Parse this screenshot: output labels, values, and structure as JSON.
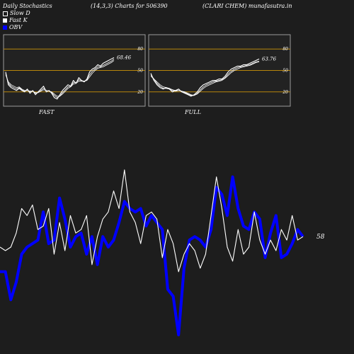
{
  "header": {
    "title": "Daily Stochastics",
    "params": "(14,3,3) Charts for 506390",
    "company": "(CLARI CHEM) munafasutra.in"
  },
  "legend": {
    "items": [
      {
        "label": "Slow  D",
        "color": "#ffffff",
        "icon": "white-square-icon"
      },
      {
        "label": "Fast K",
        "color": "#ffffff",
        "icon": "white-square-icon"
      },
      {
        "label": "OBV",
        "color": "#0000ff",
        "icon": "blue-square-icon"
      }
    ]
  },
  "colors": {
    "background": "#1d1d1d",
    "panel": "#222222",
    "band": "#b8860b",
    "obv": "#0000ff",
    "price": "#ffffff"
  },
  "chart_data": [
    {
      "type": "line",
      "name": "fast-stochastics",
      "label": "FAST",
      "ylim": [
        0,
        100
      ],
      "yticks": [
        20,
        50,
        80
      ],
      "bands": [
        20,
        50,
        80
      ],
      "last_value_label": "68.46",
      "series": [
        {
          "values": [
            48,
            30,
            26,
            24,
            22,
            25,
            22,
            20,
            24,
            18,
            22,
            16,
            20,
            24,
            28,
            20,
            22,
            18,
            12,
            10,
            16,
            22,
            26,
            30,
            28,
            36,
            32,
            40,
            36,
            34,
            38,
            48,
            52,
            54,
            58,
            56,
            60,
            62,
            64,
            66,
            68
          ]
        },
        {
          "values": [
            46,
            32,
            28,
            26,
            24,
            26,
            23,
            21,
            22,
            20,
            21,
            18,
            19,
            22,
            25,
            22,
            21,
            19,
            15,
            12,
            14,
            19,
            23,
            27,
            28,
            33,
            33,
            37,
            36,
            35,
            37,
            44,
            49,
            52,
            55,
            55,
            57,
            59,
            61,
            63,
            66
          ]
        },
        {
          "values": [
            44,
            34,
            30,
            28,
            26,
            27,
            24,
            22,
            22,
            21,
            21,
            19,
            19,
            21,
            23,
            22,
            21,
            20,
            17,
            14,
            14,
            17,
            21,
            25,
            27,
            31,
            32,
            35,
            35,
            35,
            36,
            41,
            46,
            50,
            53,
            54,
            55,
            57,
            59,
            61,
            64
          ]
        }
      ]
    },
    {
      "type": "line",
      "name": "full-stochastics",
      "label": "FULL",
      "ylim": [
        0,
        100
      ],
      "yticks": [
        20,
        50,
        80
      ],
      "bands": [
        20,
        50,
        80
      ],
      "last_value_label": "63.76",
      "series": [
        {
          "values": [
            46,
            36,
            30,
            26,
            24,
            26,
            24,
            20,
            22,
            24,
            20,
            18,
            16,
            14,
            16,
            20,
            26,
            30,
            32,
            34,
            36,
            36,
            38,
            38,
            42,
            48,
            52,
            54,
            56,
            56,
            58,
            58,
            60,
            62,
            64,
            66
          ]
        },
        {
          "values": [
            44,
            38,
            32,
            28,
            25,
            25,
            24,
            22,
            21,
            22,
            21,
            19,
            17,
            15,
            15,
            18,
            23,
            27,
            30,
            32,
            34,
            35,
            36,
            37,
            40,
            45,
            49,
            52,
            54,
            55,
            56,
            57,
            58,
            60,
            62,
            63
          ]
        },
        {
          "values": [
            42,
            38,
            34,
            30,
            27,
            26,
            25,
            23,
            22,
            22,
            21,
            20,
            18,
            16,
            15,
            17,
            21,
            25,
            28,
            30,
            32,
            34,
            35,
            36,
            39,
            43,
            47,
            50,
            52,
            54,
            55,
            56,
            57,
            59,
            61,
            62
          ]
        }
      ]
    },
    {
      "type": "line",
      "name": "price-vs-obv",
      "last_value_label": "58",
      "series": [
        {
          "name": "OBV",
          "color": "#0000ff",
          "values": [
            38,
            38,
            22,
            32,
            48,
            52,
            54,
            56,
            72,
            54,
            56,
            80,
            68,
            52,
            58,
            60,
            48,
            58,
            42,
            58,
            52,
            56,
            66,
            78,
            74,
            72,
            74,
            64,
            70,
            66,
            62,
            28,
            24,
            2,
            40,
            56,
            58,
            56,
            52,
            62,
            86,
            82,
            70,
            92,
            74,
            64,
            62,
            72,
            68,
            46,
            60,
            70,
            46,
            48,
            54,
            62,
            58
          ]
        },
        {
          "name": "Price",
          "color": "#ffffff",
          "values": [
            52,
            50,
            52,
            60,
            74,
            70,
            76,
            62,
            64,
            74,
            48,
            66,
            50,
            70,
            60,
            62,
            70,
            42,
            58,
            68,
            72,
            84,
            74,
            96,
            72,
            66,
            54,
            70,
            72,
            68,
            46,
            62,
            54,
            38,
            48,
            54,
            50,
            40,
            48,
            70,
            92,
            74,
            52,
            44,
            62,
            48,
            52,
            72,
            56,
            48,
            56,
            50,
            62,
            56,
            70,
            56,
            58
          ]
        }
      ]
    }
  ]
}
